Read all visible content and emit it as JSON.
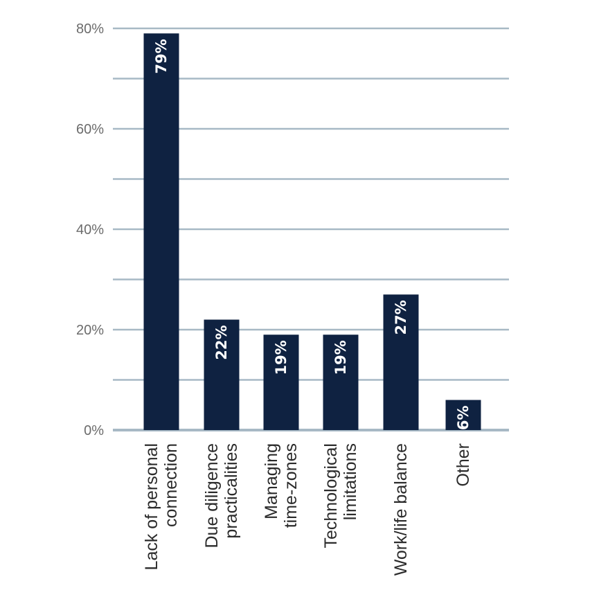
{
  "chart_data": {
    "type": "bar",
    "categories": [
      [
        "Lack of personal",
        "connection"
      ],
      [
        "Due diligence",
        "practicalities"
      ],
      [
        "Managing",
        "time-zones"
      ],
      [
        "Technological",
        "limitations"
      ],
      [
        "Work/life balance"
      ],
      [
        "Other"
      ]
    ],
    "values": [
      79,
      22,
      19,
      19,
      27,
      6
    ],
    "data_labels": [
      "79%",
      "22%",
      "19%",
      "19%",
      "27%",
      "6%"
    ],
    "y_ticks": [
      {
        "value": 0,
        "label": "0%"
      },
      {
        "value": 20,
        "label": "20%"
      },
      {
        "value": 40,
        "label": "40%"
      },
      {
        "value": 60,
        "label": "60%"
      },
      {
        "value": 80,
        "label": "80%"
      }
    ],
    "ylim": [
      0,
      80
    ],
    "grid": true,
    "grid_step": 10,
    "title": "",
    "xlabel": "",
    "ylabel": "",
    "colors": {
      "bar": "#0f2241",
      "grid": "#a7b9c5",
      "tick_text": "#6b6b6b",
      "category_text": "#2b2b2b",
      "bar_label": "#ffffff"
    }
  }
}
